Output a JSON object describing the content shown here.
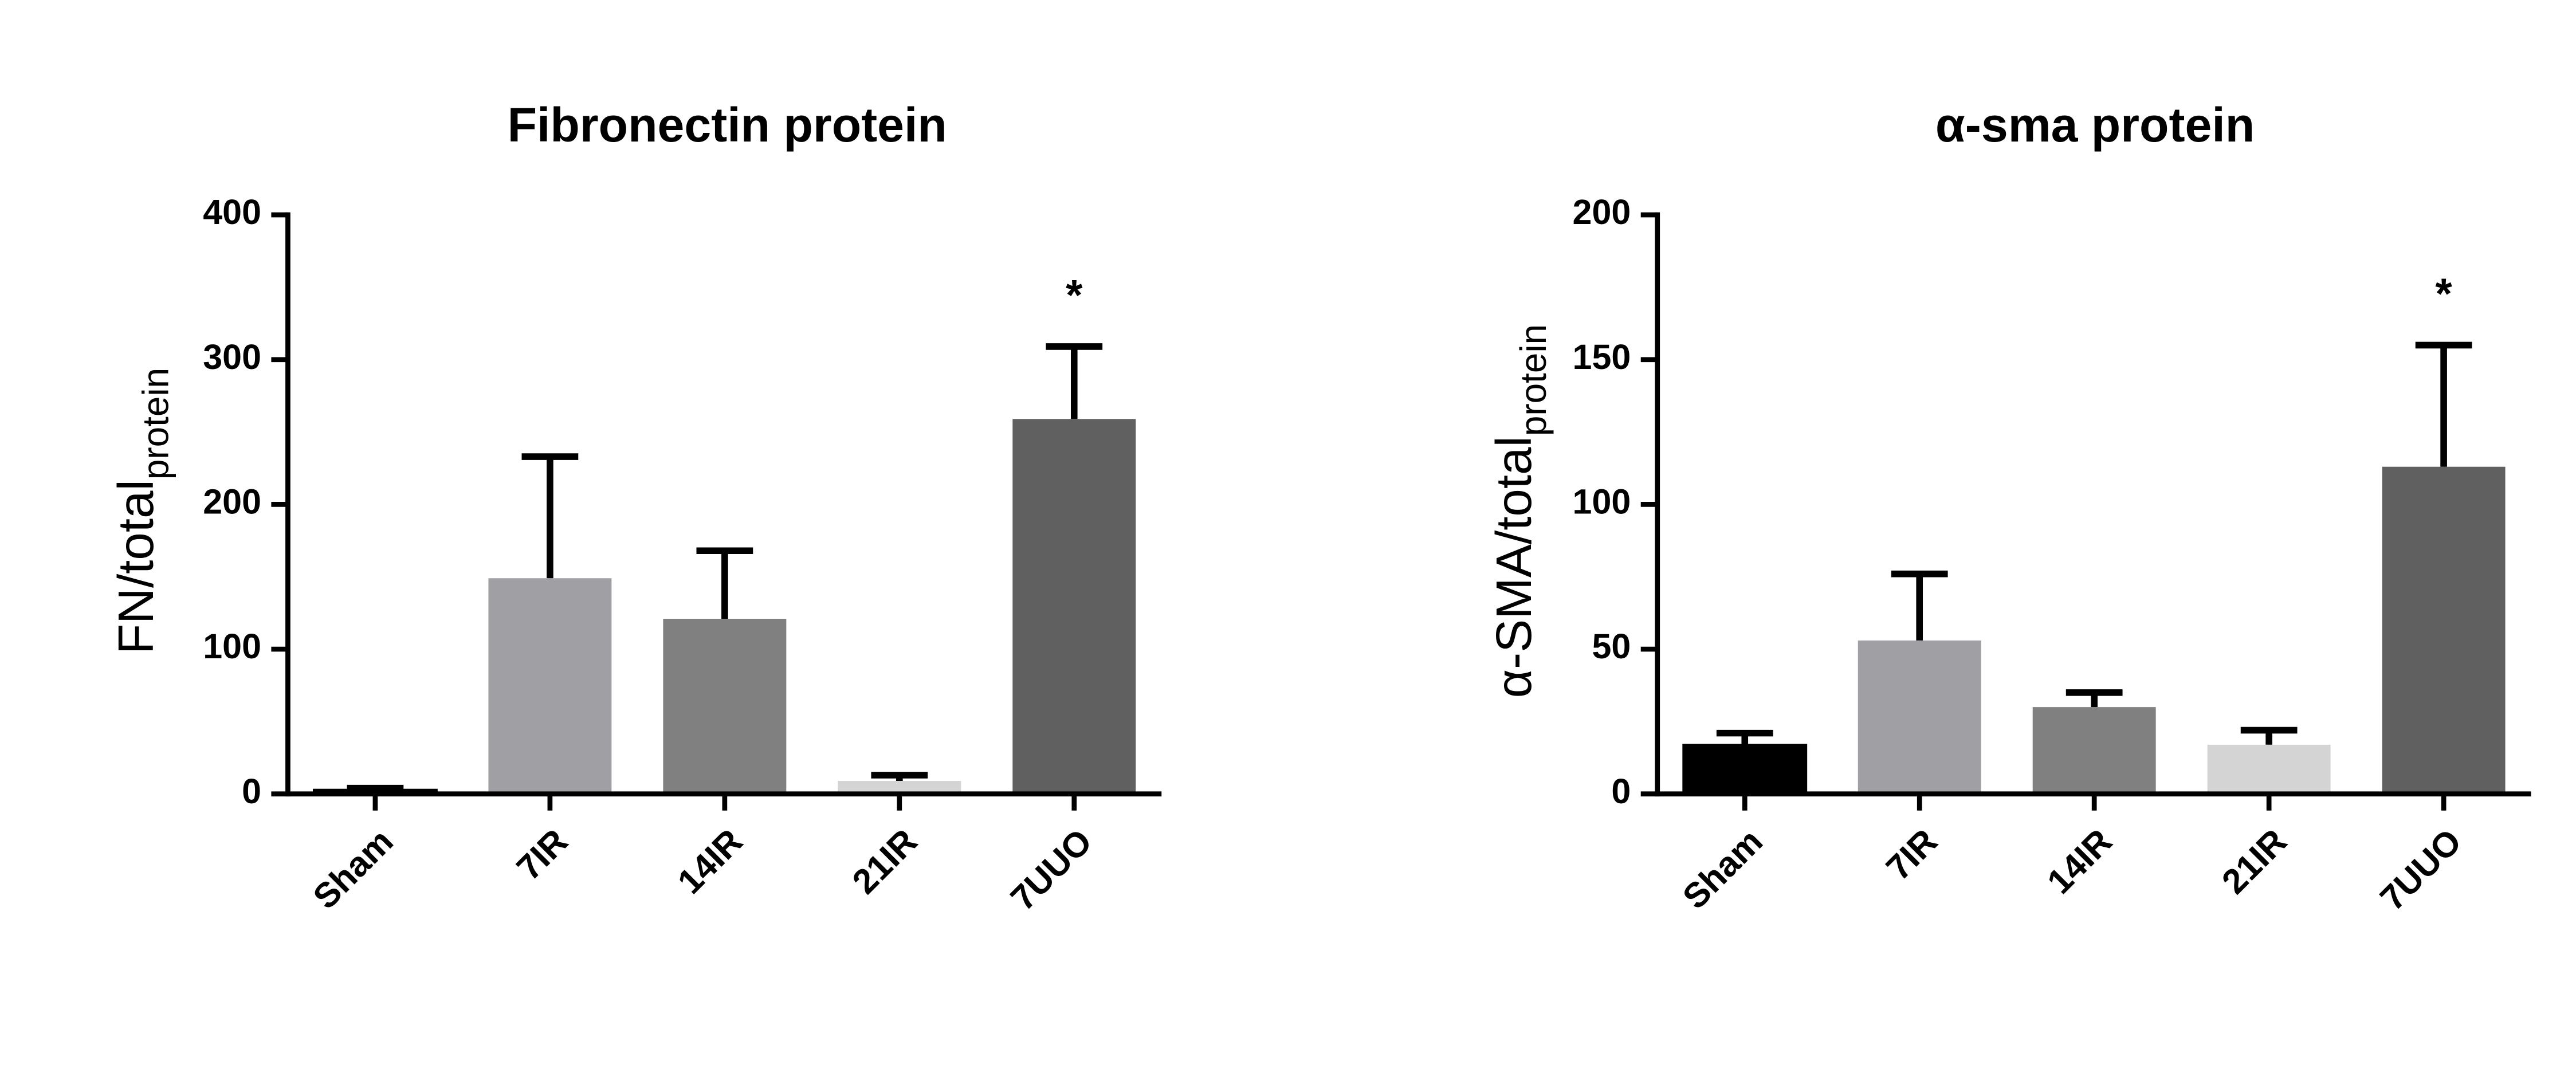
{
  "chart_data": [
    {
      "type": "bar",
      "title": "Fibronectin protein",
      "ylabel": "FN/total",
      "ylabel_sub": "protein",
      "categories": [
        "Sham",
        "7IR",
        "14IR",
        "21IR",
        "7UUO"
      ],
      "values": [
        3,
        149,
        121,
        9,
        259
      ],
      "errors": [
        1,
        84,
        47,
        4,
        50
      ],
      "colors": [
        "#000000",
        "#a0a0a4",
        "#808080",
        "#d4d4d4",
        "#606060"
      ],
      "ylim": [
        0,
        400
      ],
      "yticks": [
        0,
        100,
        200,
        300,
        400
      ],
      "annotations": [
        {
          "category": "7UUO",
          "text": "*"
        }
      ]
    },
    {
      "type": "bar",
      "title": "α-sma protein",
      "ylabel": "α-SMA/total",
      "ylabel_sub": "protein",
      "categories": [
        "Sham",
        "7IR",
        "14IR",
        "21IR",
        "7UUO"
      ],
      "values": [
        17,
        53,
        30,
        17,
        113
      ],
      "errors": [
        4,
        23,
        5,
        5,
        42
      ],
      "colors": [
        "#000000",
        "#a0a0a4",
        "#808080",
        "#d4d4d4",
        "#606060"
      ],
      "ylim": [
        0,
        200
      ],
      "yticks": [
        0,
        50,
        100,
        150,
        200
      ],
      "annotations": [
        {
          "category": "7UUO",
          "text": "*"
        }
      ]
    }
  ]
}
